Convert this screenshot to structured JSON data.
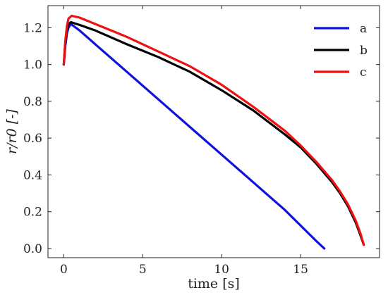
{
  "chart_data": {
    "type": "line",
    "xlabel": "time [s]",
    "ylabel": "r/r0 [-]",
    "xlim": [
      -1,
      20
    ],
    "ylim": [
      -0.05,
      1.32
    ],
    "xticks": [
      0,
      5,
      10,
      15
    ],
    "yticks": [
      0.0,
      0.2,
      0.4,
      0.6,
      0.8,
      1.0,
      1.2
    ],
    "ytick_labels": [
      "0.0",
      "0.2",
      "0.4",
      "0.6",
      "0.8",
      "1.0",
      "1.2"
    ],
    "xtick_labels": [
      "0",
      "5",
      "10",
      "15"
    ],
    "grid": false,
    "legend_position": "top-right",
    "series": [
      {
        "name": "a",
        "color": "#1111dd",
        "x": [
          0,
          0.1,
          0.2,
          0.3,
          0.45,
          1,
          2,
          4,
          6,
          8,
          10,
          12,
          14,
          16,
          16.5
        ],
        "y": [
          1.0,
          1.1,
          1.17,
          1.2,
          1.22,
          1.185,
          1.11,
          0.96,
          0.81,
          0.66,
          0.51,
          0.36,
          0.21,
          0.04,
          0.0
        ]
      },
      {
        "name": "b",
        "color": "#000000",
        "x": [
          0,
          0.1,
          0.2,
          0.3,
          0.45,
          1,
          2,
          4,
          6,
          8,
          10,
          12,
          14,
          15,
          16,
          17,
          17.5,
          18,
          18.5,
          18.8,
          19.0
        ],
        "y": [
          1.0,
          1.12,
          1.19,
          1.22,
          1.23,
          1.215,
          1.185,
          1.11,
          1.04,
          0.96,
          0.86,
          0.75,
          0.62,
          0.55,
          0.46,
          0.36,
          0.3,
          0.23,
          0.14,
          0.07,
          0.02
        ]
      },
      {
        "name": "c",
        "color": "#ee1111",
        "x": [
          0,
          0.1,
          0.2,
          0.3,
          0.5,
          1,
          2,
          4,
          6,
          8,
          10,
          12,
          14,
          15,
          16,
          17,
          17.5,
          18,
          18.5,
          18.8,
          19.0
        ],
        "y": [
          1.0,
          1.13,
          1.21,
          1.25,
          1.265,
          1.255,
          1.22,
          1.15,
          1.07,
          0.99,
          0.89,
          0.77,
          0.64,
          0.56,
          0.47,
          0.37,
          0.31,
          0.24,
          0.15,
          0.08,
          0.02
        ]
      }
    ]
  }
}
